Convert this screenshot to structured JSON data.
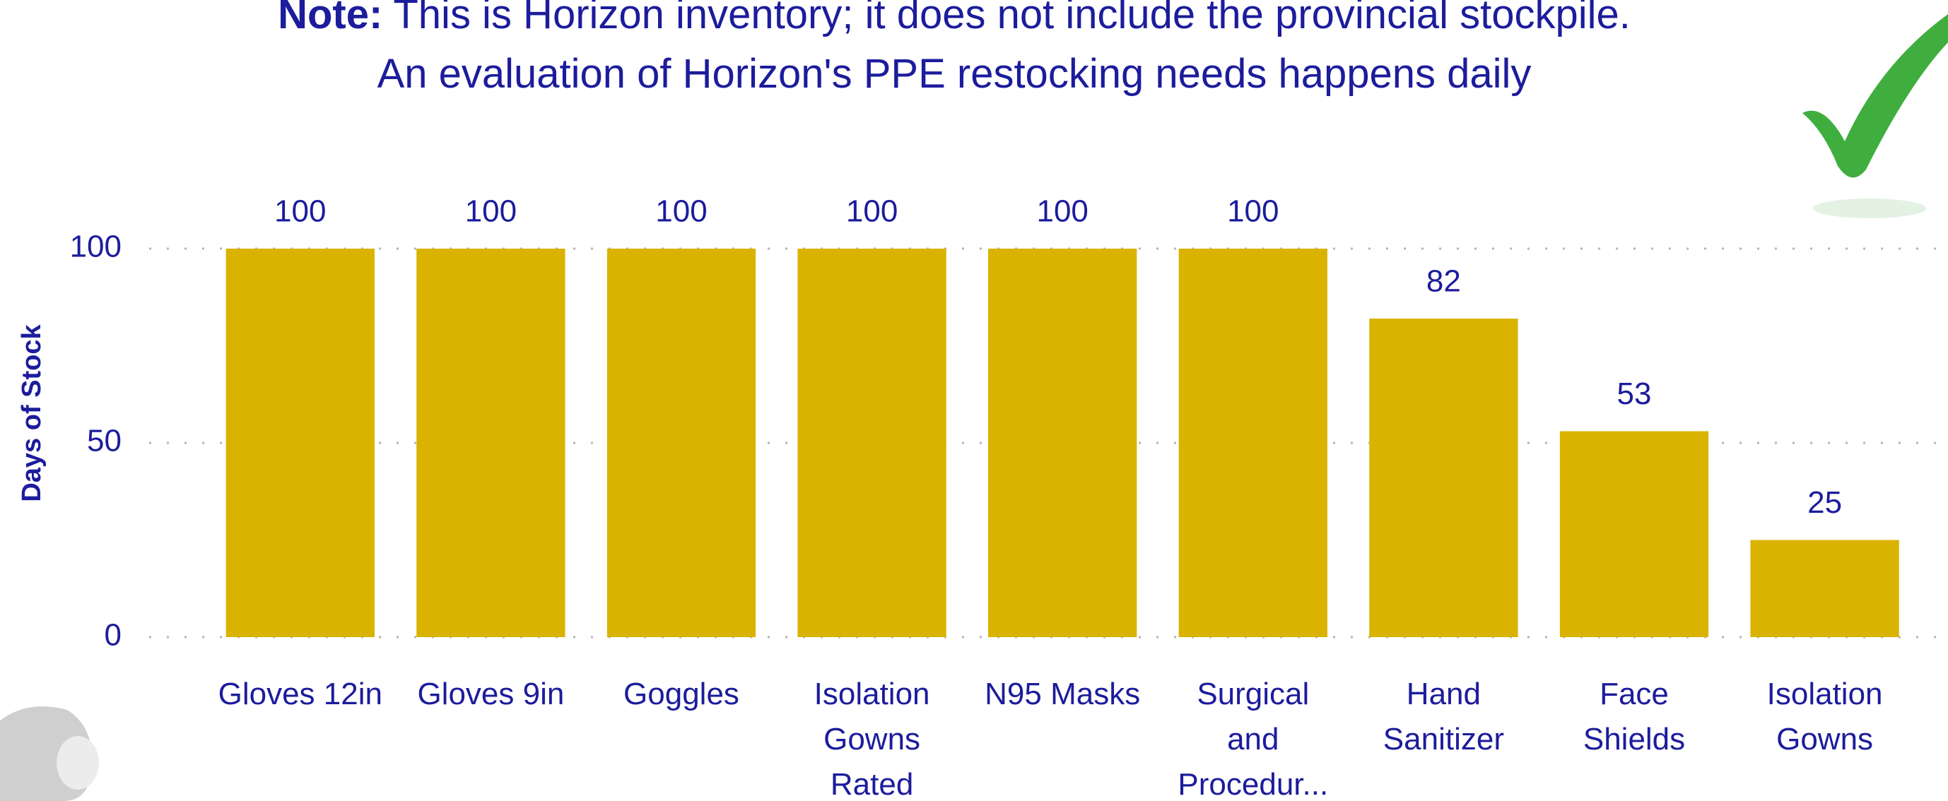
{
  "chart_data": {
    "type": "bar",
    "title_prefix": "Note:",
    "title": "This is Horizon inventory; it does not include the provincial stockpile.",
    "subtitle": "An evaluation of Horizon's PPE restocking needs happens daily",
    "y_label": "Days of Stock",
    "categories": [
      "Gloves 12in",
      "Gloves 9in",
      "Goggles",
      "Isolation Gowns Rated",
      "N95 Masks",
      "Surgical and Procedur...",
      "Hand Sanitizer",
      "Face Shields",
      "Isolation Gowns"
    ],
    "values": [
      100,
      100,
      100,
      100,
      100,
      100,
      82,
      53,
      25
    ],
    "color": "#d9b300",
    "ylim": [
      0,
      100
    ],
    "yticks": [
      0,
      50,
      100
    ],
    "grid": true
  }
}
